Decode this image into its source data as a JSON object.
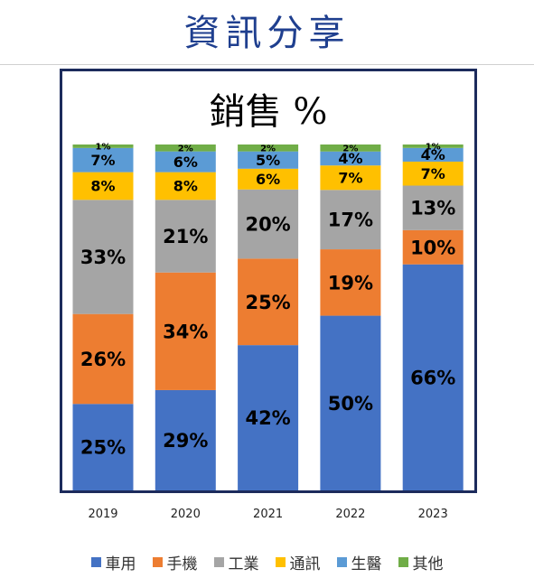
{
  "header": {
    "title": "資訊分享"
  },
  "chart_data": {
    "type": "bar",
    "stacked": true,
    "title": "銷售 %",
    "xlabel": "",
    "ylabel": "",
    "ylim": [
      0,
      100
    ],
    "categories": [
      "2019",
      "2020",
      "2021",
      "2022",
      "2023"
    ],
    "series": [
      {
        "name": "車用",
        "color": "#4472c4",
        "values": [
          25,
          29,
          42,
          50,
          66
        ],
        "labels": [
          "25%",
          "29%",
          "42%",
          "50%",
          "66%"
        ]
      },
      {
        "name": "手機",
        "color": "#ed7d31",
        "values": [
          26,
          34,
          25,
          19,
          10
        ],
        "labels": [
          "26%",
          "34%",
          "25%",
          "19%",
          "10%"
        ]
      },
      {
        "name": "工業",
        "color": "#a5a5a5",
        "values": [
          33,
          21,
          20,
          17,
          13
        ],
        "labels": [
          "33%",
          "21%",
          "20%",
          "17%",
          "13%"
        ]
      },
      {
        "name": "通訊",
        "color": "#ffc000",
        "values": [
          8,
          8,
          6,
          7,
          7
        ],
        "labels": [
          "8%",
          "8%",
          "6%",
          "7%",
          "7%"
        ]
      },
      {
        "name": "生醫",
        "color": "#5b9bd5",
        "values": [
          7,
          6,
          5,
          4,
          4
        ],
        "labels": [
          "7%",
          "6%",
          "5%",
          "4%",
          "4%"
        ]
      },
      {
        "name": "其他",
        "color": "#70ad47",
        "values": [
          1,
          2,
          2,
          2,
          1
        ],
        "labels": [
          "1%",
          "2%",
          "2%",
          "2%",
          "1%"
        ]
      }
    ],
    "legend_position": "bottom",
    "grid": false
  }
}
